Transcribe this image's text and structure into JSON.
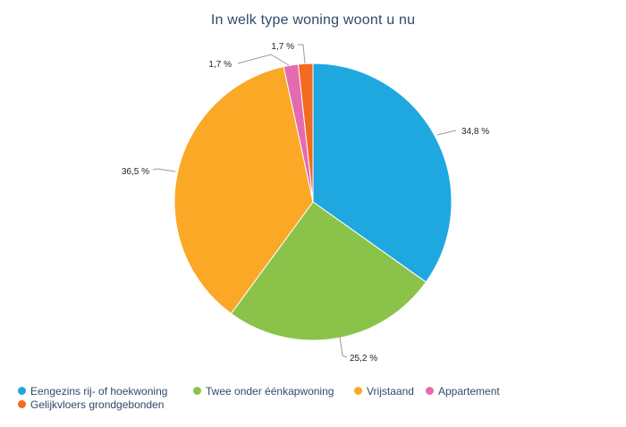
{
  "chart_data": {
    "type": "pie",
    "title": "In welk type woning woont u nu",
    "legend_position": "bottom",
    "slices": [
      {
        "name": "Eengezins rij- of hoekwoning",
        "value": 34.8,
        "label": "34,8 %",
        "color": "#1fa8e0"
      },
      {
        "name": "Twee onder éénkapwoning",
        "value": 25.2,
        "label": "25,2 %",
        "color": "#8bc34a"
      },
      {
        "name": "Vrijstaand",
        "value": 36.5,
        "label": "36,5 %",
        "color": "#fba826"
      },
      {
        "name": "Appartement",
        "value": 1.7,
        "label": "1,7 %",
        "color": "#e56bb0"
      },
      {
        "name": "Gelijkvloers grondgebonden",
        "value": 1.7,
        "label": "1,7 %",
        "color": "#f26b21"
      }
    ]
  }
}
